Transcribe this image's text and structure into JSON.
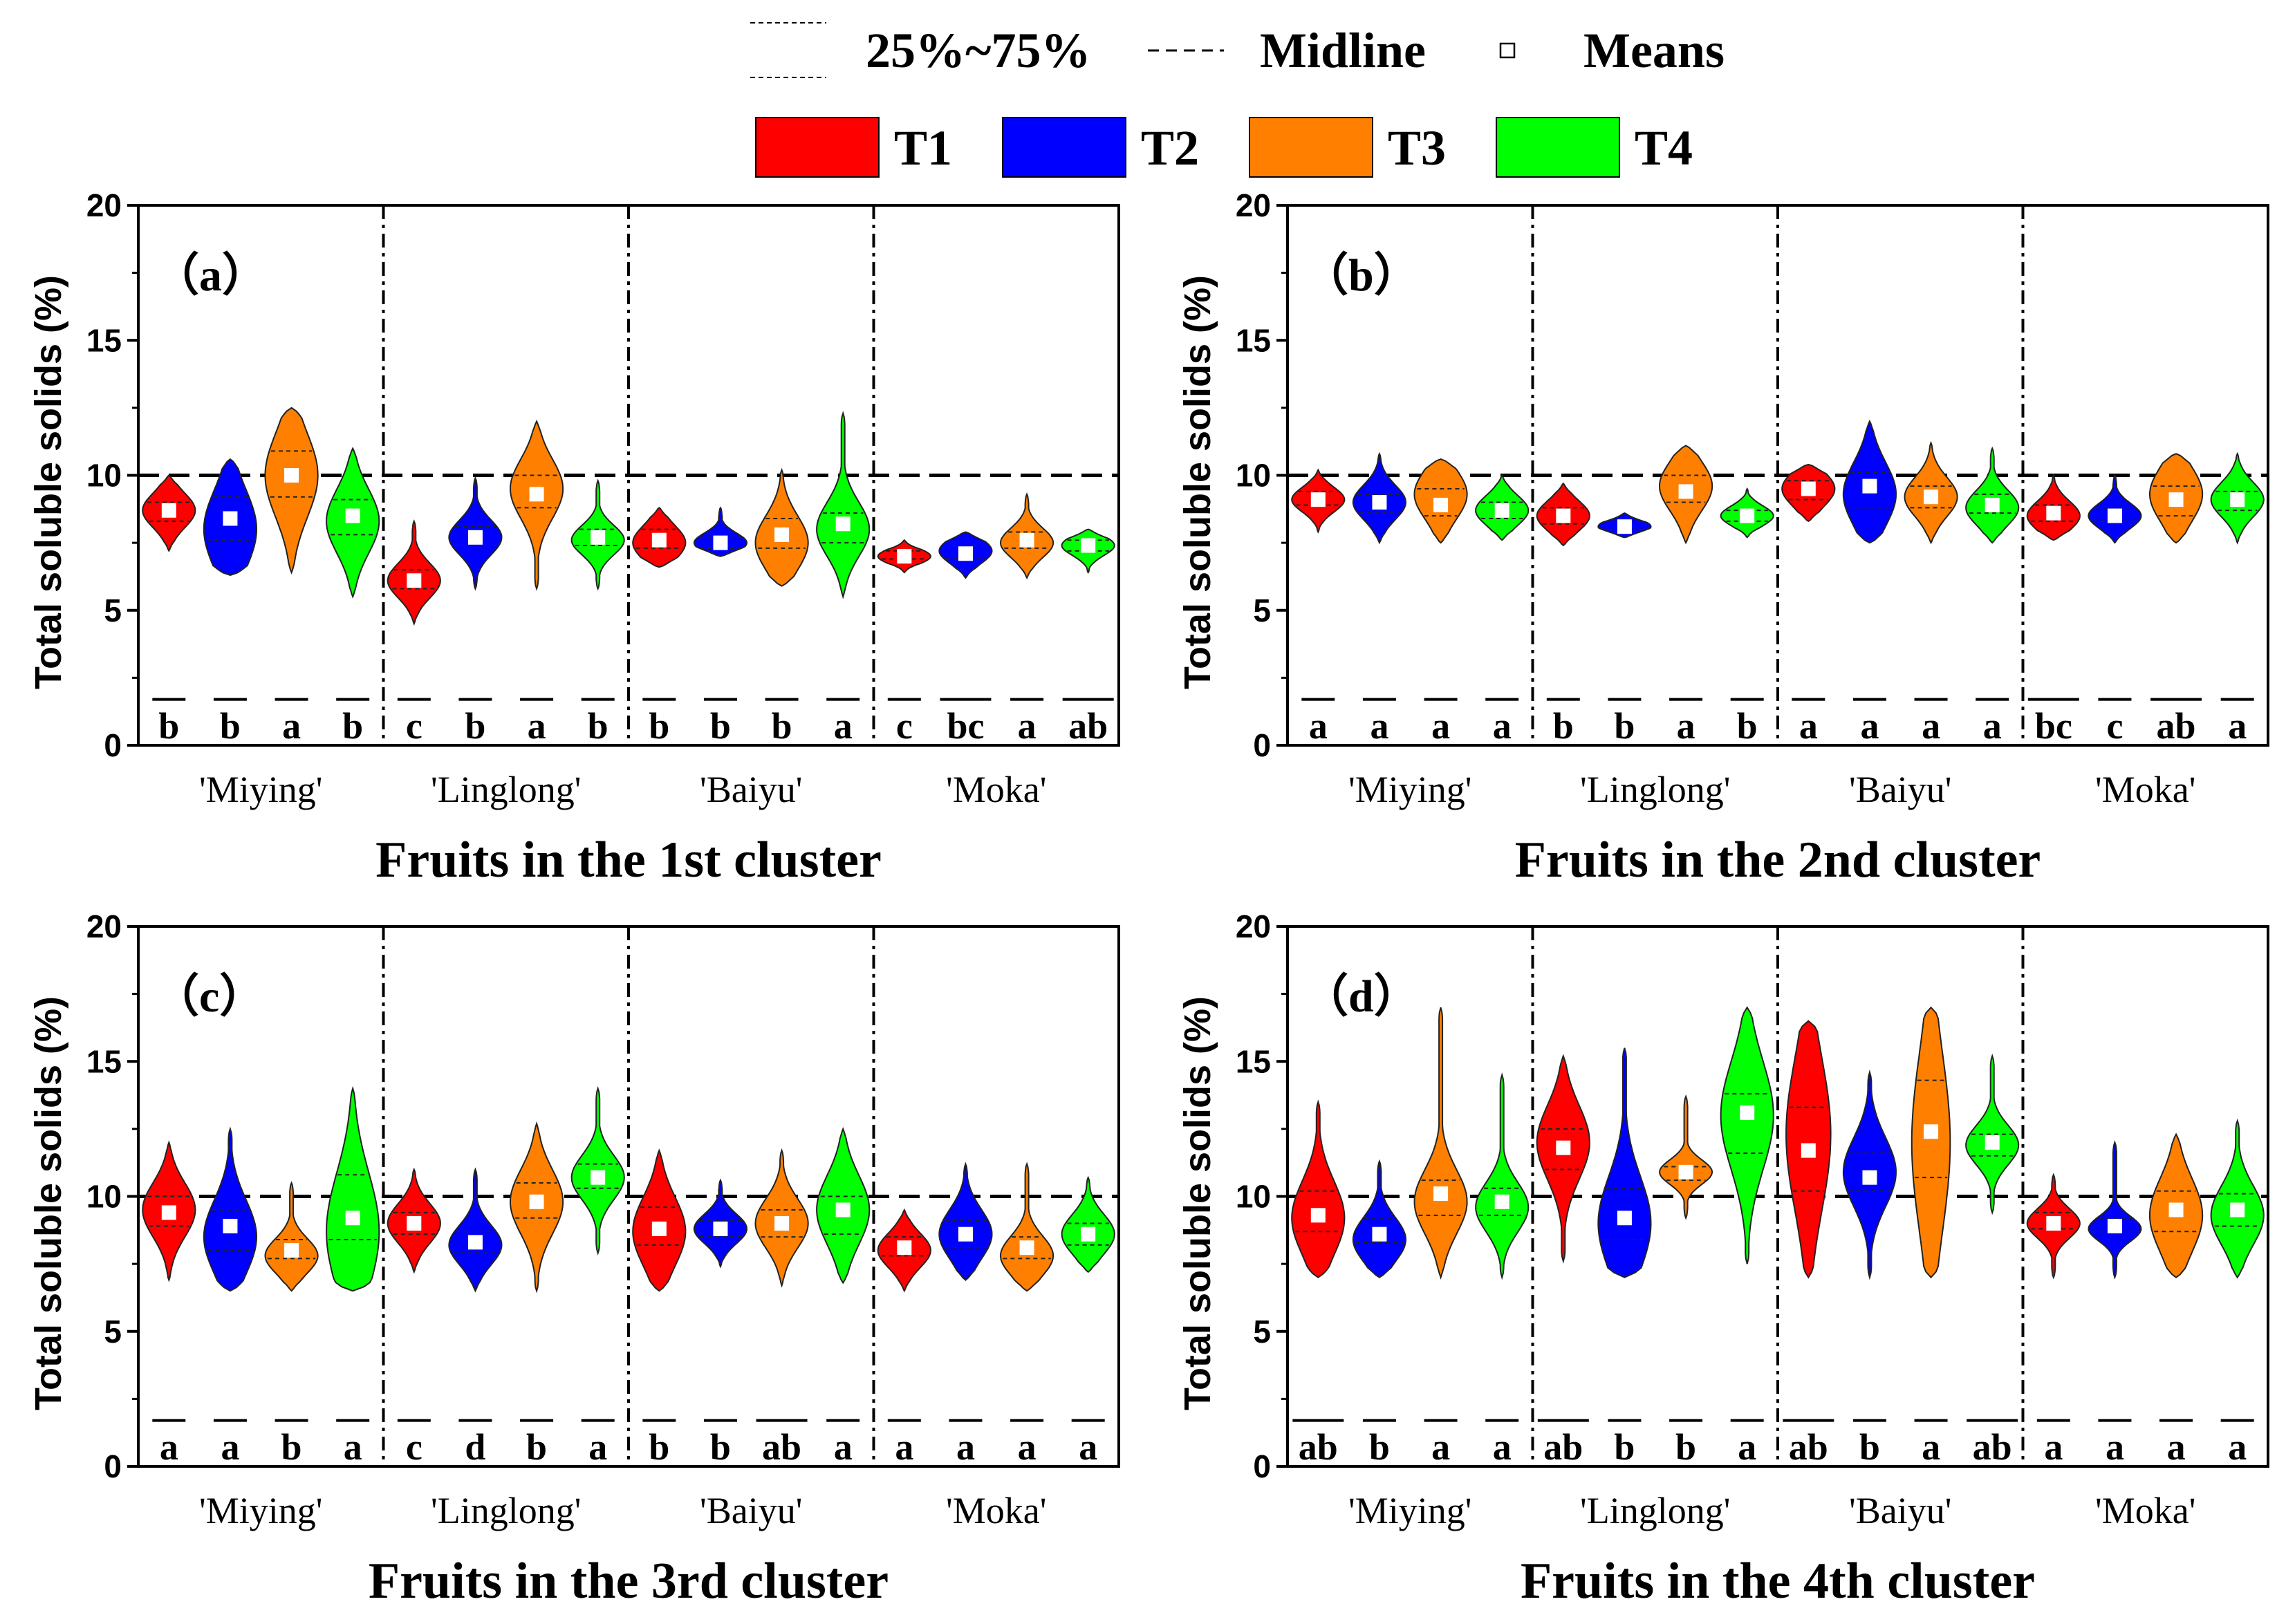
{
  "legend": {
    "iqr_label": "25%~75%",
    "midline_label": "Midline",
    "means_label": "Means",
    "groups": [
      {
        "name": "T1",
        "color": "#ff0000"
      },
      {
        "name": "T2",
        "color": "#0000ff"
      },
      {
        "name": "T3",
        "color": "#ff8000"
      },
      {
        "name": "T4",
        "color": "#00ff00"
      }
    ]
  },
  "chart_data": [
    {
      "type": "violin",
      "panel_label": "（a）",
      "xlabel": "Fruits in the 1st cluster",
      "ylabel": "Total soluble solids (%)",
      "ylim": [
        0,
        20
      ],
      "yticks": [
        "0",
        "5",
        "10",
        "15",
        "20"
      ],
      "reference_line": 10,
      "categories": [
        "'Miying'",
        "'Linglong'",
        "'Baiyu'",
        "'Moka'"
      ],
      "series": [
        {
          "name": "T1",
          "mean": [
            8.7,
            6.1,
            7.6,
            7.0
          ],
          "min": [
            7.2,
            4.5,
            6.6,
            6.4
          ],
          "max": [
            10.0,
            8.3,
            8.8,
            7.6
          ],
          "q1": [
            8.3,
            5.8,
            7.3,
            6.9
          ],
          "q3": [
            9.0,
            6.5,
            8.0,
            7.2
          ],
          "peak": [
            8.7,
            6.1,
            7.5,
            7.0
          ],
          "letters": [
            "b",
            "c",
            "b",
            "c"
          ]
        },
        {
          "name": "T2",
          "mean": [
            8.4,
            7.7,
            7.5,
            7.1
          ],
          "min": [
            6.3,
            5.8,
            7.0,
            6.2
          ],
          "max": [
            10.6,
            9.9,
            8.8,
            7.9
          ],
          "q1": [
            7.6,
            7.4,
            7.3,
            6.9
          ],
          "q3": [
            9.2,
            8.1,
            7.7,
            7.4
          ],
          "peak": [
            8.0,
            7.7,
            7.5,
            7.2
          ],
          "letters": [
            "b",
            "b",
            "b",
            "bc"
          ]
        },
        {
          "name": "T3",
          "mean": [
            10.0,
            9.3,
            7.8,
            7.6
          ],
          "min": [
            6.4,
            5.8,
            5.9,
            6.2
          ],
          "max": [
            12.5,
            12.0,
            10.2,
            9.3
          ],
          "q1": [
            9.2,
            8.8,
            7.3,
            7.3
          ],
          "q3": [
            10.9,
            10.0,
            8.4,
            7.9
          ],
          "peak": [
            10.0,
            9.5,
            7.5,
            7.5
          ],
          "letters": [
            "a",
            "a",
            "b",
            "a"
          ]
        },
        {
          "name": "T4",
          "mean": [
            8.5,
            7.7,
            8.2,
            7.4
          ],
          "min": [
            5.5,
            5.8,
            5.5,
            6.4
          ],
          "max": [
            11.0,
            9.8,
            12.3,
            8.0
          ],
          "q1": [
            7.8,
            7.4,
            7.5,
            7.2
          ],
          "q3": [
            9.1,
            8.0,
            8.6,
            7.6
          ],
          "peak": [
            8.3,
            7.6,
            8.0,
            7.4
          ],
          "letters": [
            "b",
            "b",
            "a",
            "ab"
          ]
        }
      ]
    },
    {
      "type": "violin",
      "panel_label": "（b）",
      "xlabel": "Fruits in the 2nd cluster",
      "ylabel": "Total soluble solids (%)",
      "ylim": [
        0,
        20
      ],
      "yticks": [
        "0",
        "5",
        "10",
        "15",
        "20"
      ],
      "reference_line": 10,
      "categories": [
        "'Miying'",
        "'Linglong'",
        "'Baiyu'",
        "'Moka'"
      ],
      "series": [
        {
          "name": "T1",
          "mean": [
            9.1,
            8.5,
            9.5,
            8.6
          ],
          "min": [
            7.9,
            7.4,
            8.3,
            7.6
          ],
          "max": [
            10.2,
            9.7,
            10.4,
            10.0
          ],
          "q1": [
            8.9,
            8.2,
            9.1,
            8.3
          ],
          "q3": [
            9.4,
            8.8,
            9.8,
            8.9
          ],
          "peak": [
            9.1,
            8.5,
            9.5,
            8.5
          ],
          "letters": [
            "a",
            "b",
            "a",
            "bc"
          ]
        },
        {
          "name": "T2",
          "mean": [
            9.0,
            8.1,
            9.6,
            8.5
          ],
          "min": [
            7.5,
            7.7,
            7.5,
            7.5
          ],
          "max": [
            10.8,
            8.6,
            12.0,
            10.0
          ],
          "q1": [
            8.6,
            8.0,
            8.8,
            8.3
          ],
          "q3": [
            9.3,
            8.3,
            10.1,
            8.8
          ],
          "peak": [
            9.0,
            8.1,
            9.3,
            8.5
          ],
          "letters": [
            "a",
            "b",
            "a",
            "c"
          ]
        },
        {
          "name": "T3",
          "mean": [
            8.9,
            9.4,
            9.2,
            9.1
          ],
          "min": [
            7.5,
            7.5,
            7.5,
            7.5
          ],
          "max": [
            10.6,
            11.1,
            11.2,
            10.8
          ],
          "q1": [
            8.5,
            9.0,
            8.8,
            8.5
          ],
          "q3": [
            9.5,
            10.0,
            9.6,
            9.6
          ],
          "peak": [
            9.3,
            9.6,
            9.2,
            9.3
          ],
          "letters": [
            "a",
            "a",
            "a",
            "ab"
          ]
        },
        {
          "name": "T4",
          "mean": [
            8.7,
            8.5,
            8.9,
            9.1
          ],
          "min": [
            7.6,
            7.7,
            7.5,
            7.5
          ],
          "max": [
            10.0,
            9.5,
            11.0,
            10.8
          ],
          "q1": [
            8.4,
            8.3,
            8.6,
            8.7
          ],
          "q3": [
            9.0,
            8.7,
            9.3,
            9.4
          ],
          "peak": [
            8.7,
            8.5,
            8.8,
            9.1
          ],
          "letters": [
            "a",
            "b",
            "a",
            "a"
          ]
        }
      ]
    },
    {
      "type": "violin",
      "panel_label": "（c）",
      "xlabel": "Fruits in the 3rd cluster",
      "ylabel": "Total soluble solids (%)",
      "ylim": [
        0,
        20
      ],
      "yticks": [
        "0",
        "5",
        "10",
        "15",
        "20"
      ],
      "reference_line": 10,
      "categories": [
        "'Miying'",
        "'Linglong'",
        "'Baiyu'",
        "'Moka'"
      ],
      "series": [
        {
          "name": "T1",
          "mean": [
            9.4,
            9.0,
            8.8,
            8.1
          ],
          "min": [
            6.9,
            7.2,
            6.5,
            6.5
          ],
          "max": [
            12.0,
            11.0,
            11.7,
            9.5
          ],
          "q1": [
            8.9,
            8.6,
            8.2,
            7.8
          ],
          "q3": [
            10.0,
            9.4,
            9.6,
            8.5
          ],
          "peak": [
            9.5,
            9.0,
            8.7,
            8.0
          ],
          "letters": [
            "a",
            "c",
            "b",
            "a"
          ]
        },
        {
          "name": "T2",
          "mean": [
            8.9,
            8.3,
            8.8,
            8.6
          ],
          "min": [
            6.5,
            6.5,
            7.4,
            6.9
          ],
          "max": [
            12.5,
            11.0,
            10.6,
            11.2
          ],
          "q1": [
            8.0,
            7.9,
            8.5,
            8.1
          ],
          "q3": [
            9.5,
            8.7,
            9.1,
            9.1
          ],
          "peak": [
            8.5,
            8.2,
            8.8,
            8.6
          ],
          "letters": [
            "a",
            "d",
            "b",
            "a"
          ]
        },
        {
          "name": "T3",
          "mean": [
            8.0,
            9.8,
            9.0,
            8.1
          ],
          "min": [
            6.5,
            6.5,
            6.7,
            6.5
          ],
          "max": [
            10.5,
            12.7,
            11.7,
            11.2
          ],
          "q1": [
            7.7,
            9.2,
            8.5,
            7.7
          ],
          "q3": [
            8.4,
            10.5,
            9.5,
            8.5
          ],
          "peak": [
            7.8,
            9.8,
            9.0,
            7.8
          ],
          "letters": [
            "b",
            "b",
            "ab",
            "a"
          ]
        },
        {
          "name": "T4",
          "mean": [
            9.2,
            10.7,
            9.5,
            8.6
          ],
          "min": [
            6.5,
            7.9,
            6.8,
            7.2
          ],
          "max": [
            14.0,
            14.0,
            12.5,
            10.7
          ],
          "q1": [
            8.4,
            10.3,
            8.6,
            8.2
          ],
          "q3": [
            10.8,
            11.2,
            10.0,
            9.0
          ],
          "peak": [
            8.7,
            10.7,
            9.5,
            8.6
          ],
          "letters": [
            "a",
            "a",
            "a",
            "a"
          ]
        }
      ]
    },
    {
      "type": "violin",
      "panel_label": "（d）",
      "xlabel": "Fruits in the 4th cluster",
      "ylabel": "Total soluble solids (%)",
      "ylim": [
        0,
        20
      ],
      "yticks": [
        "0",
        "5",
        "10",
        "15",
        "20"
      ],
      "reference_line": 10,
      "categories": [
        "'Miying'",
        "'Linglong'",
        "'Baiyu'",
        "'Moka'"
      ],
      "series": [
        {
          "name": "T1",
          "mean": [
            9.3,
            11.8,
            11.7,
            9.0
          ],
          "min": [
            7.0,
            7.6,
            7.0,
            7.0
          ],
          "max": [
            13.5,
            15.2,
            16.5,
            10.8
          ],
          "q1": [
            8.7,
            11.0,
            10.2,
            8.8
          ],
          "q3": [
            10.2,
            12.5,
            13.3,
            9.4
          ],
          "peak": [
            9.2,
            12.0,
            12.3,
            9.0
          ],
          "letters": [
            "ab",
            "ab",
            "ab",
            "a"
          ]
        },
        {
          "name": "T2",
          "mean": [
            8.6,
            9.2,
            10.7,
            8.9
          ],
          "min": [
            7.0,
            7.0,
            7.0,
            7.0
          ],
          "max": [
            11.3,
            15.5,
            14.6,
            12.0
          ],
          "q1": [
            8.3,
            8.4,
            10.2,
            8.7
          ],
          "q3": [
            9.2,
            10.3,
            11.6,
            9.2
          ],
          "peak": [
            8.4,
            9.0,
            10.9,
            8.8
          ],
          "letters": [
            "b",
            "b",
            "b",
            "a"
          ]
        },
        {
          "name": "T3",
          "mean": [
            10.1,
            10.9,
            12.4,
            9.5
          ],
          "min": [
            7.0,
            9.2,
            7.0,
            7.0
          ],
          "max": [
            17.0,
            13.7,
            17.0,
            12.3
          ],
          "q1": [
            9.3,
            10.6,
            10.7,
            8.7
          ],
          "q3": [
            10.6,
            11.1,
            14.3,
            10.2
          ],
          "peak": [
            9.8,
            10.9,
            12.0,
            9.3
          ],
          "letters": [
            "a",
            "b",
            "a",
            "a"
          ]
        },
        {
          "name": "T4",
          "mean": [
            9.8,
            13.1,
            12.0,
            9.5
          ],
          "min": [
            7.0,
            7.5,
            9.4,
            7.0
          ],
          "max": [
            14.5,
            17.0,
            15.2,
            12.8
          ],
          "q1": [
            9.3,
            11.6,
            11.5,
            8.9
          ],
          "q3": [
            10.3,
            13.8,
            12.3,
            10.1
          ],
          "peak": [
            9.6,
            13.0,
            11.9,
            9.3
          ],
          "letters": [
            "a",
            "a",
            "ab",
            "a"
          ]
        }
      ]
    }
  ]
}
